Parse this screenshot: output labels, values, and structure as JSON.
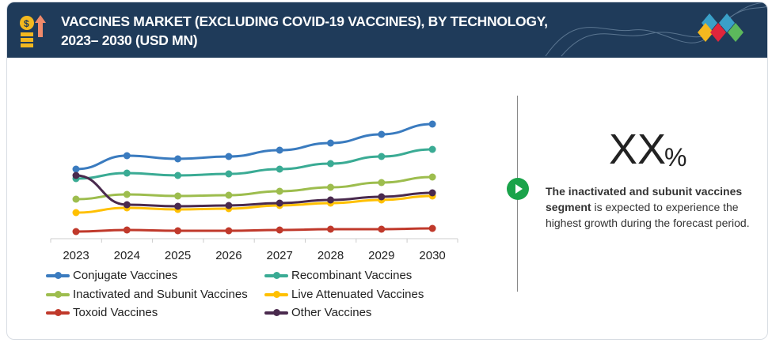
{
  "header": {
    "title_line1": "VACCINES MARKET (EXCLUDING COVID-19 VACCINES), BY TECHNOLOGY,",
    "title_line2": "2023– 2030 (USD MN)"
  },
  "callout": {
    "value": "XX",
    "unit": "%",
    "bold": "The inactivated and subunit vaccines segment",
    "rest": " is expected to experience the highest growth during the forecast period."
  },
  "chart_data": {
    "type": "line",
    "title": "",
    "xlabel": "",
    "ylabel": "",
    "ylim": [
      0,
      150
    ],
    "grid": false,
    "legend": "bottom",
    "x": [
      "2023",
      "2024",
      "2025",
      "2026",
      "2027",
      "2028",
      "2029",
      "2030"
    ],
    "series": [
      {
        "name": "Conjugate Vaccines",
        "color": "#3a7bbf",
        "values": [
          88,
          105,
          101,
          104,
          112,
          121,
          132,
          145
        ]
      },
      {
        "name": "Recombinant Vaccines",
        "color": "#3aab94",
        "values": [
          76,
          83,
          80,
          82,
          88,
          95,
          104,
          113
        ]
      },
      {
        "name": "Inactivated and Subunit Vaccines",
        "color": "#9dbd4e",
        "values": [
          50,
          56,
          54,
          55,
          60,
          65,
          71,
          78
        ]
      },
      {
        "name": "Live Attenuated Vaccines",
        "color": "#ffc000",
        "values": [
          33,
          39,
          37,
          38,
          42,
          45,
          49,
          54
        ]
      },
      {
        "name": "Toxoid Vaccines",
        "color": "#c0392b",
        "values": [
          9,
          11,
          10,
          10,
          11,
          12,
          12,
          13
        ]
      },
      {
        "name": "Other Vaccines",
        "color": "#4a2a4e",
        "values": [
          80,
          43,
          41,
          42,
          45,
          49,
          53,
          58
        ]
      }
    ]
  }
}
